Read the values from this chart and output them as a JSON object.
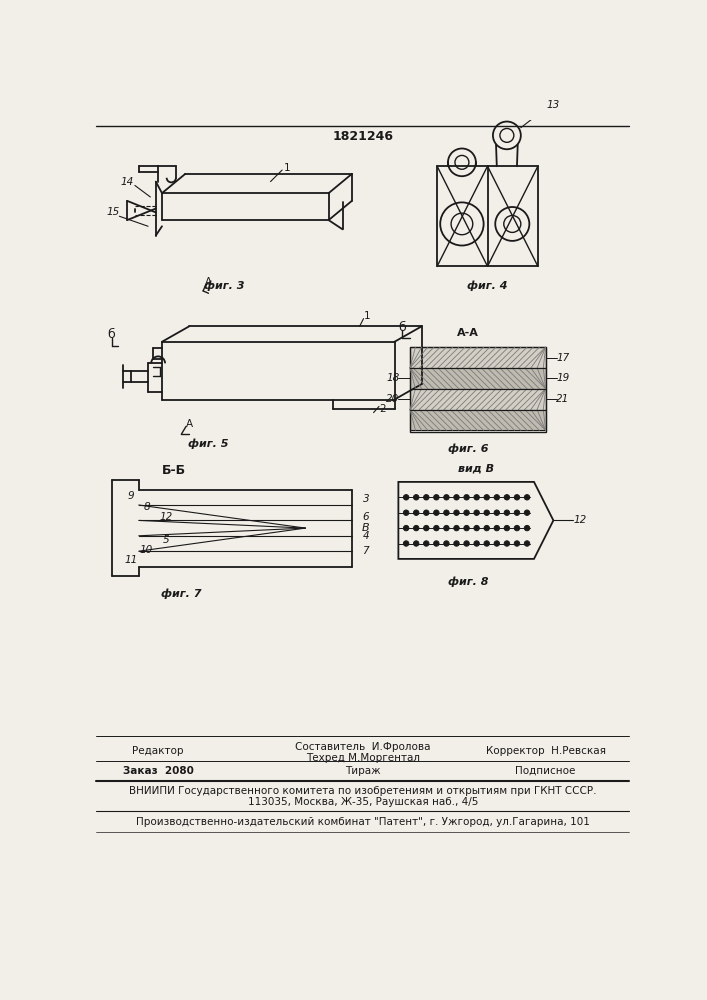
{
  "title": "1821246",
  "bg_color": "#f2efe9",
  "line_color": "#1a1a1a",
  "fig3_label": "фиг. 3",
  "fig4_label": "фиг. 4",
  "fig5_label": "фиг. 5",
  "fig6_label": "фиг. 6",
  "fig7_label": "фиг. 7",
  "fig8_label": "фиг. 8",
  "footer_editor": "Редактор",
  "footer_compose": "Составитель  И.Фролова",
  "footer_techred": "Техред М.Моргентал",
  "footer_corrector": "Корректор  Н.Ревская",
  "footer_order": "Заказ  2080",
  "footer_tirazh": "Тираж",
  "footer_signed": "Подписное",
  "footer_vnipi": "ВНИИПИ Государственного комитета по изобретениям и открытиям при ГКНТ СССР.",
  "footer_addr": "113035, Москва, Ж-35, Раушская наб., 4/5",
  "footer_patent": "Производственно-издательский комбинат \"Патент\", г. Ужгород, ул.Гагарина, 101"
}
